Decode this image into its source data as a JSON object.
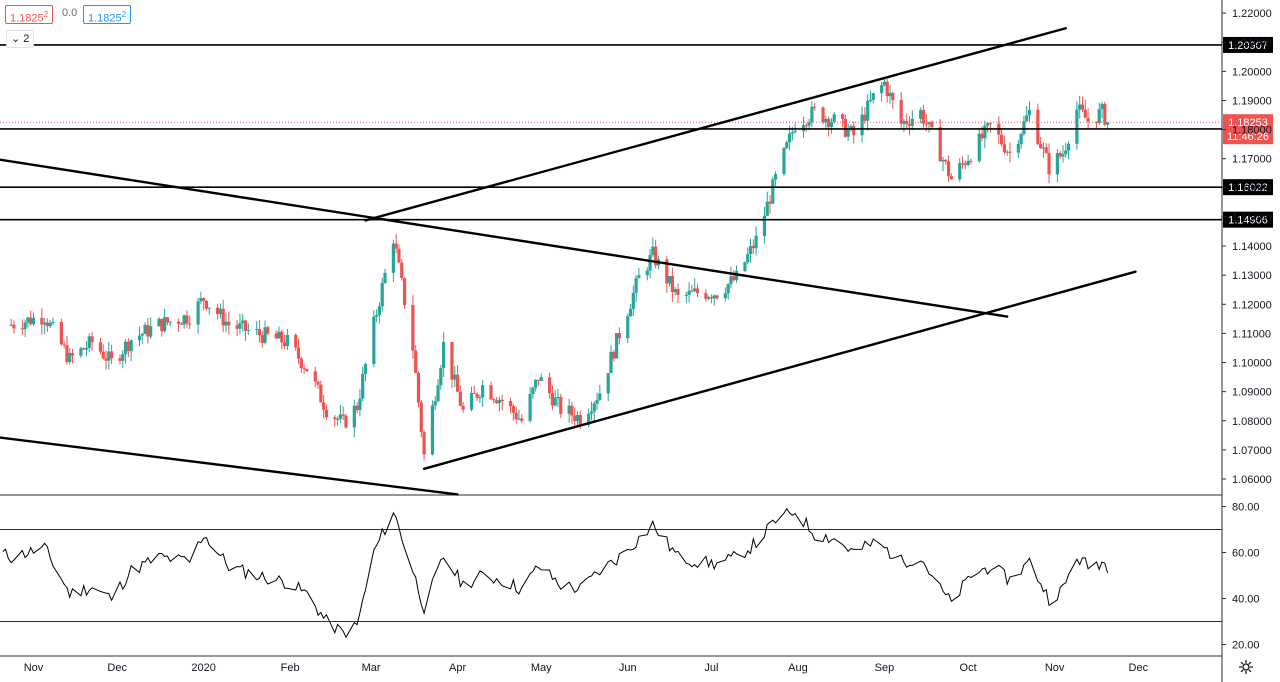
{
  "header": {
    "bid": "1.1825",
    "bid_sup": "2",
    "spread": "0.0",
    "ask": "1.1825",
    "ask_sup": "2",
    "indicators_count": "2",
    "chevron_icon": "chevron-down-icon"
  },
  "settings_icon": "gear-icon",
  "colors": {
    "up": "#26a69a",
    "down": "#ef5350",
    "trendline": "#000000",
    "level_label_bg": "#000000",
    "price_label_bg": "#ef5350",
    "oscillator": "#000000",
    "axis_text": "#131722"
  },
  "chart_data": [
    {
      "type": "candlestick",
      "title": "",
      "x_tick_labels": [
        "Nov",
        "Dec",
        "2020",
        "Feb",
        "Mar",
        "Apr",
        "May",
        "Jun",
        "Jul",
        "Aug",
        "Sep",
        "Oct",
        "Nov",
        "Dec"
      ],
      "y_tick_labels": [
        "1.22000",
        "1.21000",
        "1.20000",
        "1.19000",
        "1.18000",
        "1.17000",
        "1.16000",
        "1.15000",
        "1.14000",
        "1.13000",
        "1.12000",
        "1.11000",
        "1.10000",
        "1.09000",
        "1.08000",
        "1.07000",
        "1.06000"
      ],
      "ylim": [
        1.0545,
        1.2245
      ],
      "last_price": {
        "value": "1.18253",
        "countdown": "11:46:26",
        "numeric": 1.18253
      },
      "horizontal_levels": [
        {
          "label": "1.20907",
          "value": 1.20907
        },
        {
          "label": "1.18022",
          "value": 1.18022
        },
        {
          "label": "1.16022",
          "value": 1.16022
        },
        {
          "label": "1.14906",
          "value": 1.14906
        }
      ],
      "trendlines": [
        {
          "from": [
            "2019-10-01",
            1.1725
          ],
          "to": [
            "2020-10-15",
            1.1158
          ]
        },
        {
          "from": [
            "2020-02-28",
            1.1488
          ],
          "to": [
            "2020-11-05",
            1.2148
          ]
        },
        {
          "from": [
            "2019-10-01",
            1.0765
          ],
          "to": [
            "2020-04-01",
            1.0547
          ]
        },
        {
          "from": [
            "2020-03-20",
            1.0635
          ],
          "to": [
            "2020-11-30",
            1.1312
          ]
        }
      ],
      "x_range": [
        "2019-10-20",
        "2020-12-31"
      ],
      "price_path": [
        [
          "2019-10-24",
          1.113
        ],
        [
          "2019-11-05",
          1.116
        ],
        [
          "2019-11-14",
          1.101
        ],
        [
          "2019-11-22",
          1.107
        ],
        [
          "2019-11-29",
          1.1
        ],
        [
          "2019-12-06",
          1.108
        ],
        [
          "2019-12-16",
          1.113
        ],
        [
          "2019-12-27",
          1.116
        ],
        [
          "2020-01-01",
          1.122
        ],
        [
          "2020-01-10",
          1.113
        ],
        [
          "2020-01-20",
          1.11
        ],
        [
          "2020-01-31",
          1.107
        ],
        [
          "2020-02-07",
          1.098
        ],
        [
          "2020-02-14",
          1.084
        ],
        [
          "2020-02-20",
          1.079
        ],
        [
          "2020-02-25",
          1.085
        ],
        [
          "2020-03-02",
          1.113
        ],
        [
          "2020-03-09",
          1.143
        ],
        [
          "2020-03-16",
          1.105
        ],
        [
          "2020-03-20",
          1.068
        ],
        [
          "2020-03-27",
          1.106
        ],
        [
          "2020-04-03",
          1.083
        ],
        [
          "2020-04-10",
          1.092
        ],
        [
          "2020-04-17",
          1.087
        ],
        [
          "2020-04-24",
          1.08
        ],
        [
          "2020-04-30",
          1.095
        ],
        [
          "2020-05-08",
          1.084
        ],
        [
          "2020-05-15",
          1.081
        ],
        [
          "2020-05-22",
          1.09
        ],
        [
          "2020-05-29",
          1.11
        ],
        [
          "2020-06-05",
          1.129
        ],
        [
          "2020-06-10",
          1.137
        ],
        [
          "2020-06-19",
          1.122
        ],
        [
          "2020-06-26",
          1.124
        ],
        [
          "2020-07-03",
          1.124
        ],
        [
          "2020-07-10",
          1.129
        ],
        [
          "2020-07-17",
          1.142
        ],
        [
          "2020-07-24",
          1.163
        ],
        [
          "2020-07-31",
          1.182
        ],
        [
          "2020-08-07",
          1.186
        ],
        [
          "2020-08-14",
          1.183
        ],
        [
          "2020-08-21",
          1.178
        ],
        [
          "2020-08-28",
          1.191
        ],
        [
          "2020-09-01",
          1.196
        ],
        [
          "2020-09-07",
          1.182
        ],
        [
          "2020-09-14",
          1.186
        ],
        [
          "2020-09-21",
          1.172
        ],
        [
          "2020-09-25",
          1.163
        ],
        [
          "2020-10-02",
          1.172
        ],
        [
          "2020-10-09",
          1.181
        ],
        [
          "2020-10-16",
          1.172
        ],
        [
          "2020-10-23",
          1.186
        ],
        [
          "2020-10-30",
          1.167
        ],
        [
          "2020-11-04",
          1.172
        ],
        [
          "2020-11-09",
          1.187
        ],
        [
          "2020-11-13",
          1.183
        ],
        [
          "2020-11-18",
          1.186
        ],
        [
          "2020-11-20",
          1.1825
        ]
      ]
    },
    {
      "type": "line",
      "title": "",
      "y_tick_labels": [
        "80.00",
        "60.00",
        "40.00",
        "20.00"
      ],
      "ylim": [
        15,
        85
      ],
      "bands": [
        70,
        30
      ],
      "path": [
        [
          "2019-10-20",
          60
        ],
        [
          "2019-10-24",
          58
        ],
        [
          "2019-11-05",
          62
        ],
        [
          "2019-11-14",
          42
        ],
        [
          "2019-11-22",
          45
        ],
        [
          "2019-11-29",
          40
        ],
        [
          "2019-12-06",
          52
        ],
        [
          "2019-12-16",
          58
        ],
        [
          "2019-12-27",
          56
        ],
        [
          "2020-01-01",
          68
        ],
        [
          "2020-01-10",
          54
        ],
        [
          "2020-01-20",
          50
        ],
        [
          "2020-01-31",
          47
        ],
        [
          "2020-02-07",
          42
        ],
        [
          "2020-02-14",
          30
        ],
        [
          "2020-02-20",
          25
        ],
        [
          "2020-02-25",
          28
        ],
        [
          "2020-03-02",
          60
        ],
        [
          "2020-03-09",
          78
        ],
        [
          "2020-03-16",
          52
        ],
        [
          "2020-03-20",
          36
        ],
        [
          "2020-03-27",
          58
        ],
        [
          "2020-04-03",
          46
        ],
        [
          "2020-04-10",
          50
        ],
        [
          "2020-04-17",
          48
        ],
        [
          "2020-04-24",
          44
        ],
        [
          "2020-04-30",
          54
        ],
        [
          "2020-05-08",
          46
        ],
        [
          "2020-05-15",
          44
        ],
        [
          "2020-05-22",
          52
        ],
        [
          "2020-05-29",
          58
        ],
        [
          "2020-06-05",
          66
        ],
        [
          "2020-06-10",
          72
        ],
        [
          "2020-06-19",
          58
        ],
        [
          "2020-06-26",
          56
        ],
        [
          "2020-07-03",
          55
        ],
        [
          "2020-07-10",
          58
        ],
        [
          "2020-07-17",
          64
        ],
        [
          "2020-07-24",
          74
        ],
        [
          "2020-07-31",
          78
        ],
        [
          "2020-08-07",
          68
        ],
        [
          "2020-08-14",
          66
        ],
        [
          "2020-08-21",
          60
        ],
        [
          "2020-08-28",
          64
        ],
        [
          "2020-09-01",
          62
        ],
        [
          "2020-09-07",
          56
        ],
        [
          "2020-09-14",
          58
        ],
        [
          "2020-09-21",
          44
        ],
        [
          "2020-09-25",
          38
        ],
        [
          "2020-10-02",
          50
        ],
        [
          "2020-10-09",
          54
        ],
        [
          "2020-10-16",
          48
        ],
        [
          "2020-10-23",
          56
        ],
        [
          "2020-10-30",
          40
        ],
        [
          "2020-11-04",
          44
        ],
        [
          "2020-11-09",
          58
        ],
        [
          "2020-11-13",
          54
        ],
        [
          "2020-11-18",
          56
        ],
        [
          "2020-11-20",
          54
        ]
      ]
    }
  ]
}
